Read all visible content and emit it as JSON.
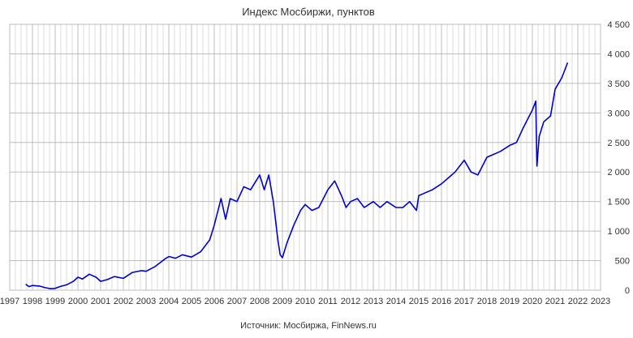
{
  "chart_data": {
    "type": "line",
    "title": "Индекс Мосбиржи, пунктов",
    "source": "Источник: Мосбиржа, FinNews.ru",
    "xlim": [
      1997,
      2023
    ],
    "ylim": [
      0,
      4500
    ],
    "x_ticks": [
      "1997",
      "1998",
      "1999",
      "2000",
      "2001",
      "2002",
      "2003",
      "2004",
      "2005",
      "2006",
      "2007",
      "2008",
      "2009",
      "2010",
      "2011",
      "2012",
      "2013",
      "2014",
      "2015",
      "2016",
      "2017",
      "2018",
      "2019",
      "2020",
      "2021",
      "2022",
      "2023"
    ],
    "y_ticks": [
      {
        "value": 0,
        "label": "0"
      },
      {
        "value": 500,
        "label": "500"
      },
      {
        "value": 1000,
        "label": "1 000"
      },
      {
        "value": 1500,
        "label": "1 500"
      },
      {
        "value": 2000,
        "label": "2 000"
      },
      {
        "value": 2500,
        "label": "2 500"
      },
      {
        "value": 3000,
        "label": "3 000"
      },
      {
        "value": 3500,
        "label": "3 500"
      },
      {
        "value": 4000,
        "label": "4 000"
      },
      {
        "value": 4500,
        "label": "4 500"
      }
    ],
    "y_axis_position": "right",
    "grid": true,
    "line_color": "#0000cc",
    "series": [
      {
        "x": [
          1997.7,
          1997.85,
          1998.0,
          1998.3,
          1998.6,
          1998.8,
          1999.0,
          1999.2,
          1999.5,
          1999.8,
          2000.0,
          2000.2,
          2000.5,
          2000.8,
          2001.0,
          2001.3,
          2001.6,
          2002.0,
          2002.4,
          2002.8,
          2003.0,
          2003.4,
          2003.8,
          2004.0,
          2004.3,
          2004.6,
          2005.0,
          2005.4,
          2005.8,
          2006.0,
          2006.3,
          2006.5,
          2006.7,
          2007.0,
          2007.3,
          2007.6,
          2008.0,
          2008.2,
          2008.4,
          2008.6,
          2008.8,
          2008.9,
          2009.0,
          2009.2,
          2009.5,
          2009.8,
          2010.0,
          2010.3,
          2010.6,
          2011.0,
          2011.3,
          2011.6,
          2011.8,
          2012.0,
          2012.3,
          2012.6,
          2013.0,
          2013.3,
          2013.6,
          2014.0,
          2014.3,
          2014.6,
          2014.9,
          2015.0,
          2015.3,
          2015.6,
          2016.0,
          2016.3,
          2016.6,
          2017.0,
          2017.3,
          2017.6,
          2018.0,
          2018.3,
          2018.6,
          2019.0,
          2019.3,
          2019.6,
          2020.0,
          2020.15,
          2020.2,
          2020.3,
          2020.5,
          2020.8,
          2021.0,
          2021.3,
          2021.55
        ],
        "y": [
          100,
          60,
          80,
          70,
          40,
          25,
          30,
          60,
          90,
          150,
          220,
          190,
          270,
          220,
          150,
          180,
          230,
          200,
          300,
          330,
          320,
          400,
          520,
          570,
          540,
          600,
          560,
          650,
          850,
          1100,
          1550,
          1200,
          1550,
          1500,
          1750,
          1700,
          1950,
          1700,
          1950,
          1500,
          850,
          600,
          550,
          800,
          1100,
          1350,
          1450,
          1350,
          1400,
          1700,
          1850,
          1600,
          1400,
          1500,
          1550,
          1400,
          1500,
          1400,
          1500,
          1400,
          1400,
          1500,
          1350,
          1600,
          1650,
          1700,
          1800,
          1900,
          2000,
          2200,
          2000,
          1950,
          2250,
          2300,
          2350,
          2450,
          2500,
          2750,
          3050,
          3200,
          2100,
          2600,
          2850,
          2950,
          3400,
          3600,
          3850
        ]
      }
    ]
  }
}
